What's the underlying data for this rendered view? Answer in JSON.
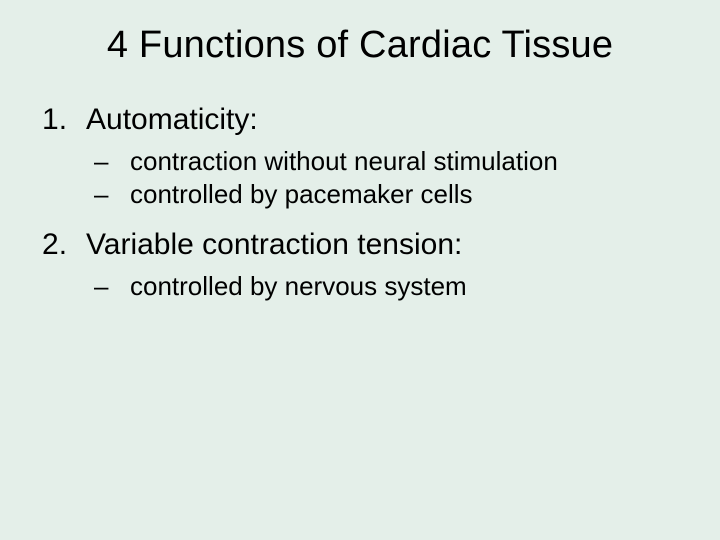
{
  "background_color": "#e4efe9",
  "text_color": "#000000",
  "title": {
    "text": "4 Functions of Cardiac Tissue",
    "fontsize": 38,
    "weight": 400,
    "align": "center"
  },
  "list": {
    "number_fontsize": 30,
    "sub_fontsize": 26,
    "number_marker_suffix": ".",
    "sub_marker": "–",
    "items": [
      {
        "number": "1",
        "label": "Automaticity:",
        "sub": [
          "contraction without neural stimulation",
          "controlled by pacemaker cells"
        ]
      },
      {
        "number": "2",
        "label": "Variable contraction tension:",
        "sub": [
          "controlled by nervous system"
        ]
      }
    ]
  }
}
